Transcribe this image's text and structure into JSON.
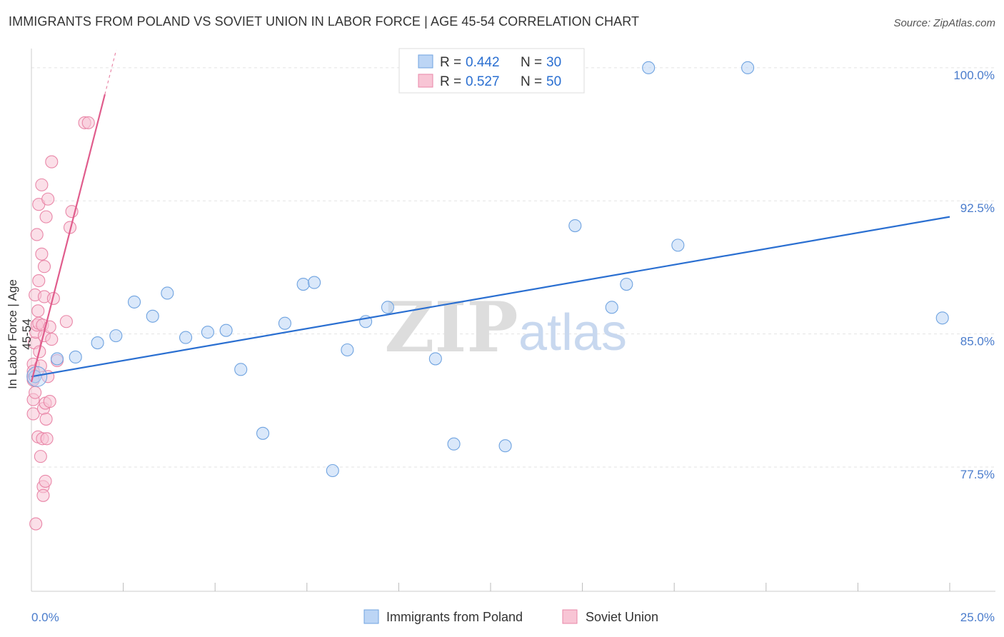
{
  "header": {
    "title": "IMMIGRANTS FROM POLAND VS SOVIET UNION IN LABOR FORCE | AGE 45-54 CORRELATION CHART",
    "source": "Source: ZipAtlas.com"
  },
  "watermark": {
    "part1": "ZIP",
    "part2": "atlas"
  },
  "colors": {
    "blue": "#6fa3e0",
    "blue_fill": "#bcd5f5",
    "blue_line": "#2a6fd1",
    "pink": "#e987a8",
    "pink_fill": "#f8c5d5",
    "pink_line": "#e05c8c",
    "tick_label": "#4a7ccc",
    "grid": "#e3e3e3"
  },
  "chart_data": {
    "type": "scatter",
    "title": "IMMIGRANTS FROM POLAND VS SOVIET UNION IN LABOR FORCE | AGE 45-54 CORRELATION CHART",
    "xlabel": "",
    "ylabel": "In Labor Force | Age 45-54",
    "xlim": [
      0,
      25
    ],
    "ylim": [
      70.5,
      101.0
    ],
    "x_tick_labels": [
      "0.0%",
      "25.0%"
    ],
    "y_ticks": [
      77.5,
      85.0,
      92.5,
      100.0
    ],
    "y_tick_labels": [
      "77.5%",
      "85.0%",
      "92.5%",
      "100.0%"
    ],
    "grid": "horizontal dashed",
    "legend_position": "top-center",
    "legend": [
      {
        "r_label": "R =",
        "r_value": "0.442",
        "n_label": "N =",
        "n_value": "30"
      },
      {
        "r_label": "R =",
        "r_value": "0.527",
        "n_label": "N =",
        "n_value": "50"
      }
    ],
    "series": [
      {
        "name": "Immigrants from Poland",
        "color": "#6fa3e0",
        "points": [
          [
            0.1,
            82.6
          ],
          [
            0.7,
            83.6
          ],
          [
            1.2,
            83.7
          ],
          [
            1.8,
            84.5
          ],
          [
            2.3,
            84.9
          ],
          [
            2.8,
            86.8
          ],
          [
            3.3,
            86.0
          ],
          [
            3.7,
            87.3
          ],
          [
            4.2,
            84.8
          ],
          [
            4.8,
            85.1
          ],
          [
            5.3,
            85.2
          ],
          [
            5.7,
            83.0
          ],
          [
            6.3,
            79.4
          ],
          [
            6.9,
            85.6
          ],
          [
            7.4,
            87.8
          ],
          [
            7.7,
            87.9
          ],
          [
            8.2,
            77.3
          ],
          [
            8.6,
            84.1
          ],
          [
            9.1,
            85.7
          ],
          [
            9.7,
            86.5
          ],
          [
            11.0,
            83.6
          ],
          [
            11.5,
            78.8
          ],
          [
            12.9,
            78.7
          ],
          [
            14.8,
            91.1
          ],
          [
            15.8,
            86.5
          ],
          [
            16.2,
            87.8
          ],
          [
            16.8,
            100.0
          ],
          [
            17.6,
            90.0
          ],
          [
            19.5,
            100.0
          ],
          [
            24.8,
            85.9
          ]
        ],
        "trend": {
          "x1": 0,
          "y1": 82.6,
          "x2": 25,
          "y2": 91.6
        }
      },
      {
        "name": "Soviet Union",
        "color": "#e987a8",
        "points": [
          [
            0.05,
            82.7
          ],
          [
            0.05,
            82.5
          ],
          [
            0.05,
            82.4
          ],
          [
            0.05,
            83.3
          ],
          [
            0.05,
            80.5
          ],
          [
            0.05,
            81.3
          ],
          [
            0.08,
            84.5
          ],
          [
            0.1,
            81.7
          ],
          [
            0.1,
            87.2
          ],
          [
            0.12,
            85.1
          ],
          [
            0.12,
            74.3
          ],
          [
            0.15,
            90.6
          ],
          [
            0.15,
            85.5
          ],
          [
            0.18,
            79.2
          ],
          [
            0.18,
            86.3
          ],
          [
            0.2,
            92.3
          ],
          [
            0.2,
            88.0
          ],
          [
            0.2,
            85.6
          ],
          [
            0.22,
            84.0
          ],
          [
            0.25,
            78.1
          ],
          [
            0.25,
            83.2
          ],
          [
            0.28,
            93.4
          ],
          [
            0.28,
            89.5
          ],
          [
            0.3,
            85.5
          ],
          [
            0.3,
            79.1
          ],
          [
            0.32,
            76.4
          ],
          [
            0.32,
            75.9
          ],
          [
            0.33,
            80.8
          ],
          [
            0.35,
            88.8
          ],
          [
            0.35,
            87.1
          ],
          [
            0.35,
            84.9
          ],
          [
            0.38,
            81.1
          ],
          [
            0.38,
            76.7
          ],
          [
            0.4,
            91.6
          ],
          [
            0.4,
            80.2
          ],
          [
            0.42,
            79.1
          ],
          [
            0.45,
            92.6
          ],
          [
            0.45,
            82.6
          ],
          [
            0.5,
            85.4
          ],
          [
            0.5,
            81.2
          ],
          [
            0.55,
            94.7
          ],
          [
            0.55,
            84.7
          ],
          [
            0.6,
            87.0
          ],
          [
            0.7,
            83.5
          ],
          [
            0.95,
            85.7
          ],
          [
            1.05,
            91.0
          ],
          [
            1.1,
            91.9
          ],
          [
            1.45,
            96.9
          ],
          [
            1.55,
            96.9
          ],
          [
            0.05,
            82.9
          ]
        ],
        "trend": {
          "x1": 0,
          "y1": 82.3,
          "x2": 2.0,
          "y2": 98.5
        }
      }
    ]
  }
}
